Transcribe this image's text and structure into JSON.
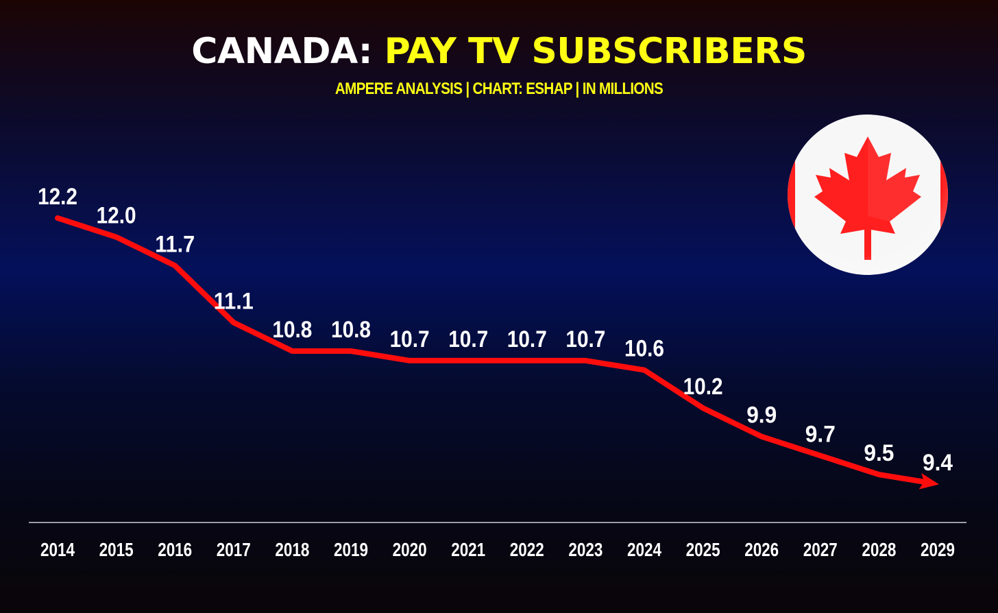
{
  "header": {
    "title_main": "CANADA:",
    "title_accent": "PAY TV SUBSCRIBERS",
    "subtitle": "AMPERE ANALYSIS | CHART: ESHAP | IN MILLIONS"
  },
  "flag": {
    "icon": "canada-flag-icon",
    "colors": {
      "red": "#ff1f1f",
      "white": "#ffffff"
    }
  },
  "colors": {
    "line": "#ff0d0d",
    "labels": "#ffffff",
    "title_accent": "#ffff14",
    "axis": "#cfcfd6"
  },
  "chart_data": {
    "type": "line",
    "title": "CANADA: PAY TV SUBSCRIBERS",
    "subtitle": "AMPERE ANALYSIS | CHART: ESHAP | IN MILLIONS",
    "xlabel": "",
    "ylabel": "",
    "grid": false,
    "legend": "none",
    "x": [
      "2014",
      "2015",
      "2016",
      "2017",
      "2018",
      "2019",
      "2020",
      "2021",
      "2022",
      "2023",
      "2024",
      "2025",
      "2026",
      "2027",
      "2028",
      "2029"
    ],
    "series": [
      {
        "values": [
          12.2,
          12.0,
          11.7,
          11.1,
          10.8,
          10.8,
          10.7,
          10.7,
          10.7,
          10.7,
          10.6,
          10.2,
          9.9,
          9.7,
          9.5,
          9.4
        ],
        "labels": [
          "12.2",
          "12.0",
          "11.7",
          "11.1",
          "10.8",
          "10.8",
          "10.7",
          "10.7",
          "10.7",
          "10.7",
          "10.6",
          "10.2",
          "9.9",
          "9.7",
          "9.5",
          "9.4"
        ]
      }
    ],
    "ylim": [
      9.0,
      12.5
    ]
  }
}
